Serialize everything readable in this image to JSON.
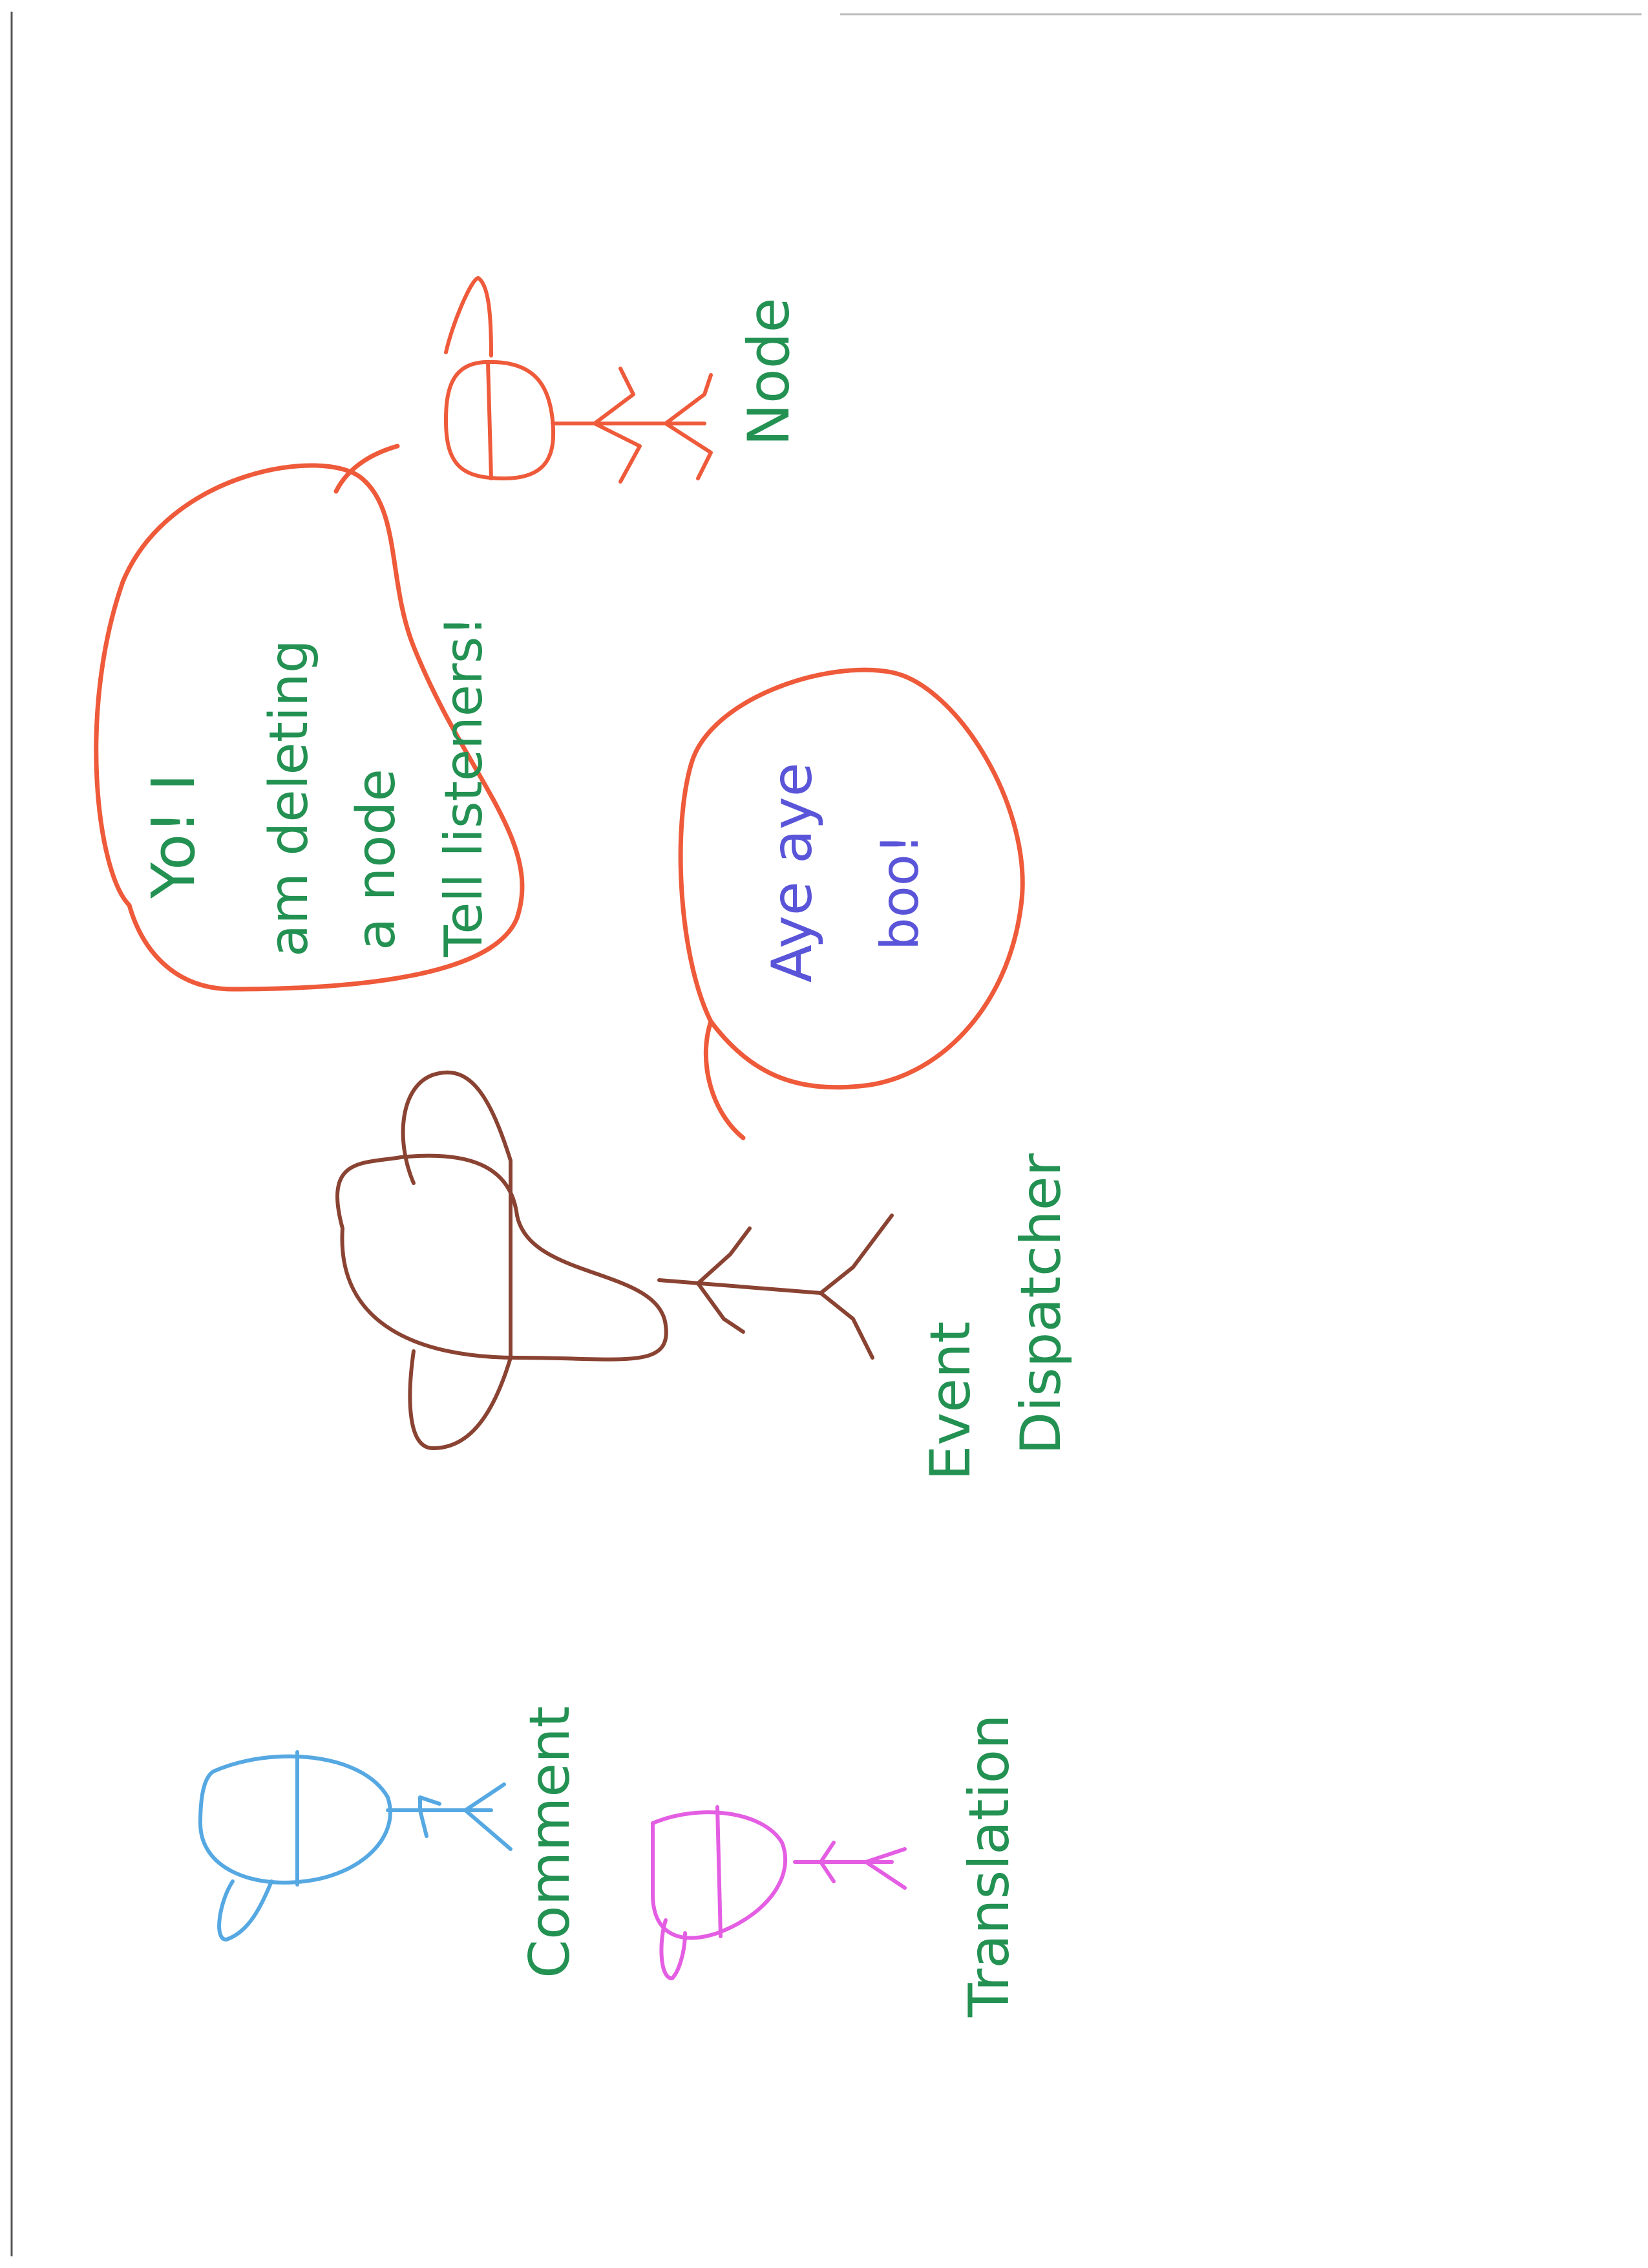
{
  "colors": {
    "red": "#ee5a3a",
    "green": "#239152",
    "brown": "#8a4332",
    "blue": "#56a8e2",
    "pink": "#e45ee3",
    "violet": "#5a55d8"
  },
  "characters": {
    "node": {
      "label": "Node"
    },
    "event_dispatcher": {
      "label_line1": "Event",
      "label_line2": "Dispatcher"
    },
    "comment": {
      "label": "Comment"
    },
    "translation": {
      "label": "Translation"
    }
  },
  "speech": {
    "dispatcher_to_node": {
      "line1": "Yo! I",
      "line2": "am  deleting",
      "line3": "a   node",
      "line4": "Tell   listeners!"
    },
    "node_reply": {
      "line1": "Aye aye",
      "line2": "boo!"
    }
  }
}
